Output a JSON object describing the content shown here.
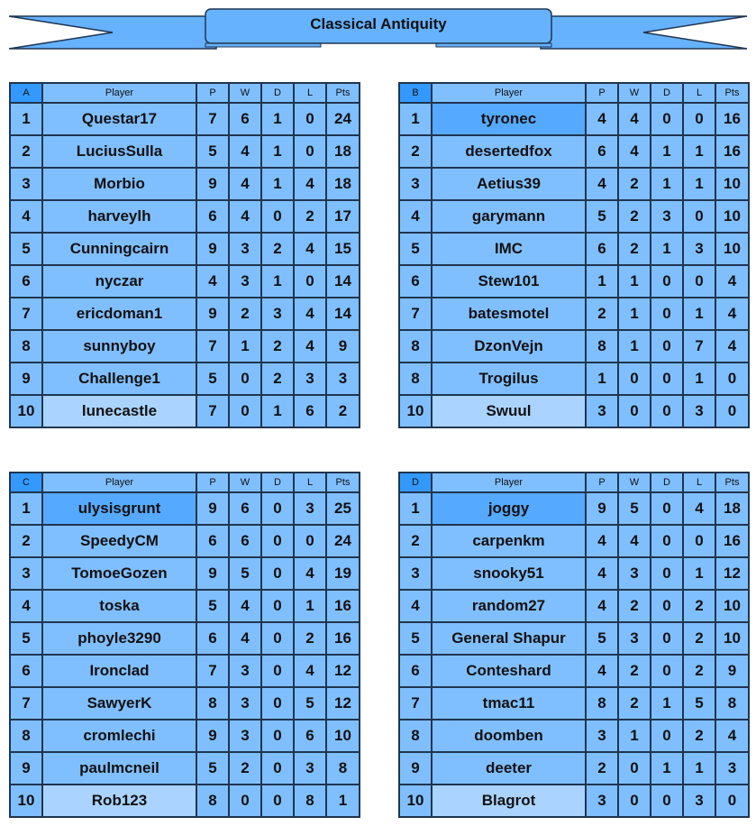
{
  "title": "Classical Antiquity",
  "colors": {
    "cell": "#80bfff",
    "group_header": "#3399ff",
    "leader": "#55aaff",
    "last": "#aad4ff",
    "banner": "#66b2ff"
  },
  "columns": [
    "Player",
    "P",
    "W",
    "D",
    "L",
    "Pts"
  ],
  "groups": [
    {
      "name": "A",
      "rows": [
        [
          "1",
          "Questar17",
          "7",
          "6",
          "1",
          "0",
          "24"
        ],
        [
          "2",
          "LuciusSulla",
          "5",
          "4",
          "1",
          "0",
          "18"
        ],
        [
          "3",
          "Morbio",
          "9",
          "4",
          "1",
          "4",
          "18"
        ],
        [
          "4",
          "harveylh",
          "6",
          "4",
          "0",
          "2",
          "17"
        ],
        [
          "5",
          "Cunningcairn",
          "9",
          "3",
          "2",
          "4",
          "15"
        ],
        [
          "6",
          "nyczar",
          "4",
          "3",
          "1",
          "0",
          "14"
        ],
        [
          "7",
          "ericdoman1",
          "9",
          "2",
          "3",
          "4",
          "14"
        ],
        [
          "8",
          "sunnyboy",
          "7",
          "1",
          "2",
          "4",
          "9"
        ],
        [
          "9",
          "Challenge1",
          "5",
          "0",
          "2",
          "3",
          "3"
        ],
        [
          "10",
          "lunecastle",
          "7",
          "0",
          "1",
          "6",
          "2"
        ]
      ],
      "leader": false
    },
    {
      "name": "B",
      "rows": [
        [
          "1",
          "tyronec",
          "4",
          "4",
          "0",
          "0",
          "16"
        ],
        [
          "2",
          "desertedfox",
          "6",
          "4",
          "1",
          "1",
          "16"
        ],
        [
          "3",
          "Aetius39",
          "4",
          "2",
          "1",
          "1",
          "10"
        ],
        [
          "4",
          "garymann",
          "5",
          "2",
          "3",
          "0",
          "10"
        ],
        [
          "5",
          "IMC",
          "6",
          "2",
          "1",
          "3",
          "10"
        ],
        [
          "6",
          "Stew101",
          "1",
          "1",
          "0",
          "0",
          "4"
        ],
        [
          "7",
          "batesmotel",
          "2",
          "1",
          "0",
          "1",
          "4"
        ],
        [
          "8",
          "DzonVejn",
          "8",
          "1",
          "0",
          "7",
          "4"
        ],
        [
          "8",
          "Trogilus",
          "1",
          "0",
          "0",
          "1",
          "0"
        ],
        [
          "10",
          "Swuul",
          "3",
          "0",
          "0",
          "3",
          "0"
        ]
      ],
      "leader": true
    },
    {
      "name": "C",
      "rows": [
        [
          "1",
          "ulysisgrunt",
          "9",
          "6",
          "0",
          "3",
          "25"
        ],
        [
          "2",
          "SpeedyCM",
          "6",
          "6",
          "0",
          "0",
          "24"
        ],
        [
          "3",
          "TomoeGozen",
          "9",
          "5",
          "0",
          "4",
          "19"
        ],
        [
          "4",
          "toska",
          "5",
          "4",
          "0",
          "1",
          "16"
        ],
        [
          "5",
          "phoyle3290",
          "6",
          "4",
          "0",
          "2",
          "16"
        ],
        [
          "6",
          "Ironclad",
          "7",
          "3",
          "0",
          "4",
          "12"
        ],
        [
          "7",
          "SawyerK",
          "8",
          "3",
          "0",
          "5",
          "12"
        ],
        [
          "8",
          "cromlechi",
          "9",
          "3",
          "0",
          "6",
          "10"
        ],
        [
          "9",
          "paulmcneil",
          "5",
          "2",
          "0",
          "3",
          "8"
        ],
        [
          "10",
          "Rob123",
          "8",
          "0",
          "0",
          "8",
          "1"
        ]
      ],
      "leader": true
    },
    {
      "name": "D",
      "rows": [
        [
          "1",
          "joggy",
          "9",
          "5",
          "0",
          "4",
          "18"
        ],
        [
          "2",
          "carpenkm",
          "4",
          "4",
          "0",
          "0",
          "16"
        ],
        [
          "3",
          "snooky51",
          "4",
          "3",
          "0",
          "1",
          "12"
        ],
        [
          "4",
          "random27",
          "4",
          "2",
          "0",
          "2",
          "10"
        ],
        [
          "5",
          "General Shapur",
          "5",
          "3",
          "0",
          "2",
          "10"
        ],
        [
          "6",
          "Conteshard",
          "4",
          "2",
          "0",
          "2",
          "9"
        ],
        [
          "7",
          "tmac11",
          "8",
          "2",
          "1",
          "5",
          "8"
        ],
        [
          "8",
          "doomben",
          "3",
          "1",
          "0",
          "2",
          "4"
        ],
        [
          "9",
          "deeter",
          "2",
          "0",
          "1",
          "1",
          "3"
        ],
        [
          "10",
          "Blagrot",
          "3",
          "0",
          "0",
          "3",
          "0"
        ]
      ],
      "leader": true
    }
  ]
}
